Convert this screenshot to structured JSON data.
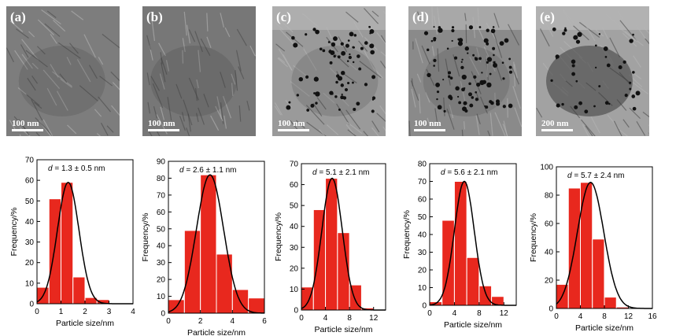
{
  "tem_panels": [
    {
      "label": "(a)",
      "scale": "100 nm",
      "particles": 0
    },
    {
      "label": "(b)",
      "scale": "100 nm",
      "particles": 0
    },
    {
      "label": "(c)",
      "scale": "100 nm",
      "particles": 70
    },
    {
      "label": "(d)",
      "scale": "100 nm",
      "particles": 90
    },
    {
      "label": "(e)",
      "scale": "200 nm",
      "particles": 40
    }
  ],
  "colors": {
    "bar": "#e8281e",
    "fit": "#000000"
  },
  "chart_data": [
    {
      "type": "bar",
      "annotation": "= 1.3 ± 0.5 nm",
      "xlabel": "Particle size/nm",
      "ylabel": "Frequency/%",
      "xlim": [
        0,
        4
      ],
      "ylim": [
        0,
        70
      ],
      "xticks": [
        0,
        1,
        2,
        3,
        4
      ],
      "yticks": [
        0,
        10,
        20,
        30,
        40,
        50,
        60,
        70
      ],
      "bin_width": 0.5,
      "x": [
        0.25,
        0.75,
        1.25,
        1.75,
        2.25,
        2.75,
        3.25
      ],
      "values": [
        8,
        51,
        59,
        13,
        3,
        2,
        0
      ],
      "fit": {
        "mean": 1.3,
        "peak": 59,
        "sigma": 0.45
      }
    },
    {
      "type": "bar",
      "annotation": "= 2.6 ± 1.1 nm",
      "xlabel": "Particle size/nm",
      "ylabel": "Frequency/%",
      "xlim": [
        0,
        6
      ],
      "ylim": [
        0,
        90
      ],
      "xticks": [
        0,
        2,
        4,
        6
      ],
      "yticks": [
        0,
        10,
        20,
        30,
        40,
        50,
        60,
        70,
        80,
        90
      ],
      "bin_width": 1,
      "x": [
        0.5,
        1.5,
        2.5,
        3.5,
        4.5,
        5.5
      ],
      "values": [
        8,
        49,
        82,
        35,
        14,
        9
      ],
      "fit": {
        "mean": 2.6,
        "peak": 82,
        "sigma": 0.85
      }
    },
    {
      "type": "bar",
      "annotation": "= 5.1 ± 2.1 nm",
      "xlabel": "Particle size/nm",
      "ylabel": "Frequency/%",
      "xlim": [
        0,
        14
      ],
      "ylim": [
        0,
        70
      ],
      "xticks": [
        0,
        4,
        8,
        12
      ],
      "yticks": [
        0,
        10,
        20,
        30,
        40,
        50,
        60,
        70
      ],
      "bin_width": 2,
      "x": [
        1,
        3,
        5,
        7,
        9,
        11,
        13
      ],
      "values": [
        11,
        48,
        63,
        37,
        12,
        1,
        0
      ],
      "fit": {
        "mean": 5.1,
        "peak": 63,
        "sigma": 1.7
      }
    },
    {
      "type": "bar",
      "annotation": "= 5.6 ± 2.1 nm",
      "xlabel": "Particle size/nm",
      "ylabel": "Frequency/%",
      "xlim": [
        0,
        14
      ],
      "ylim": [
        0,
        80
      ],
      "xticks": [
        0,
        4,
        8,
        12
      ],
      "yticks": [
        0,
        10,
        20,
        30,
        40,
        50,
        60,
        70,
        80
      ],
      "bin_width": 2,
      "x": [
        1,
        3,
        5,
        7,
        9,
        11,
        13
      ],
      "values": [
        2,
        48,
        70,
        27,
        11,
        5,
        0
      ],
      "fit": {
        "mean": 5.6,
        "peak": 70,
        "sigma": 1.6
      }
    },
    {
      "type": "bar",
      "annotation": "= 5.7 ± 2.4 nm",
      "xlabel": "Particle size/nm",
      "ylabel": "Frequency/%",
      "xlim": [
        0,
        16
      ],
      "ylim": [
        0,
        100
      ],
      "xticks": [
        0,
        4,
        8,
        12,
        16
      ],
      "yticks": [
        0,
        20,
        40,
        60,
        80,
        100
      ],
      "bin_width": 2,
      "x": [
        1,
        3,
        5,
        7,
        9,
        11,
        13,
        15
      ],
      "values": [
        17,
        85,
        89,
        49,
        8,
        1,
        0,
        0
      ],
      "fit": {
        "mean": 5.7,
        "peak": 89,
        "sigma": 2.2
      }
    }
  ]
}
